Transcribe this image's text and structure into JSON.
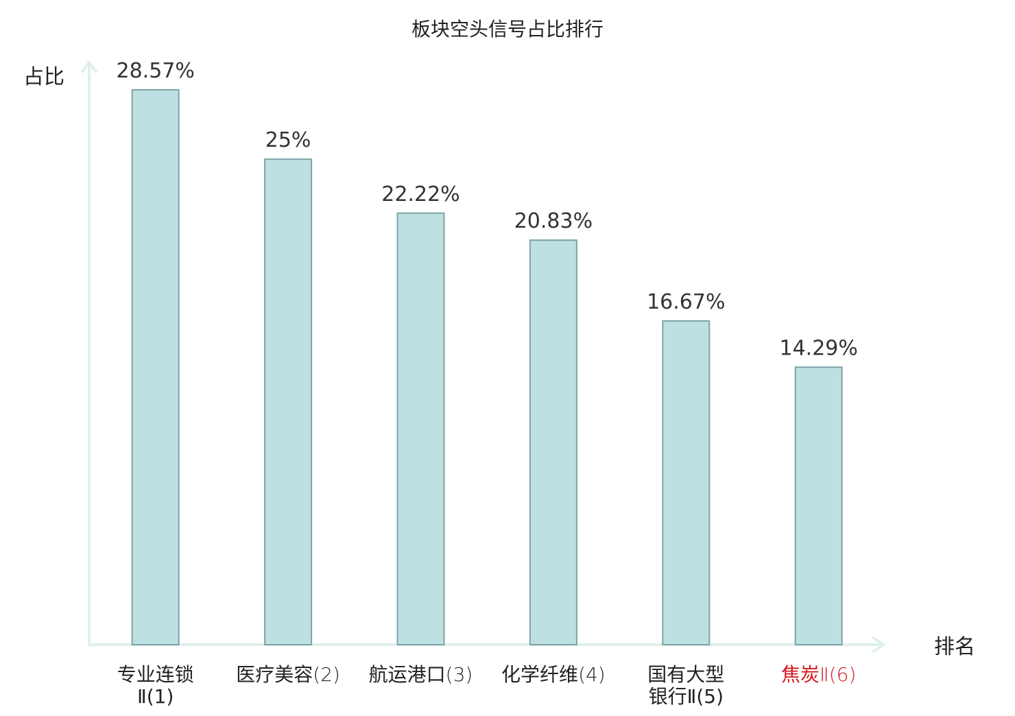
{
  "chart_data": {
    "type": "bar",
    "title": "板块空头信号占比排行",
    "ylabel": "占比",
    "xlabel": "排名",
    "categories": [
      {
        "name": "专业连锁",
        "rank": "Ⅱ(1)",
        "highlight": false
      },
      {
        "name": "医疗美容",
        "rank": "(2)",
        "highlight": false
      },
      {
        "name": "航运港口",
        "rank": "(3)",
        "highlight": false
      },
      {
        "name": "化学纤维",
        "rank": "(4)",
        "highlight": false
      },
      {
        "name": "国有大型",
        "rank": "银行Ⅱ(5)",
        "highlight": false
      },
      {
        "name": "焦炭",
        "rank": "Ⅱ(6)",
        "highlight": true
      }
    ],
    "values": [
      28.57,
      25,
      22.22,
      20.83,
      16.67,
      14.29
    ],
    "value_labels": [
      "28.57%",
      "25%",
      "22.22%",
      "20.83%",
      "16.67%",
      "14.29%"
    ],
    "ylim": [
      0,
      28.57
    ],
    "grid": false,
    "colors": {
      "bar_fill": "#bde0e3",
      "bar_stroke": "#7fa3a6",
      "axis": "#dff0ee",
      "text": "#222222",
      "label_text": "#333333",
      "highlight": "#d4181f"
    }
  }
}
